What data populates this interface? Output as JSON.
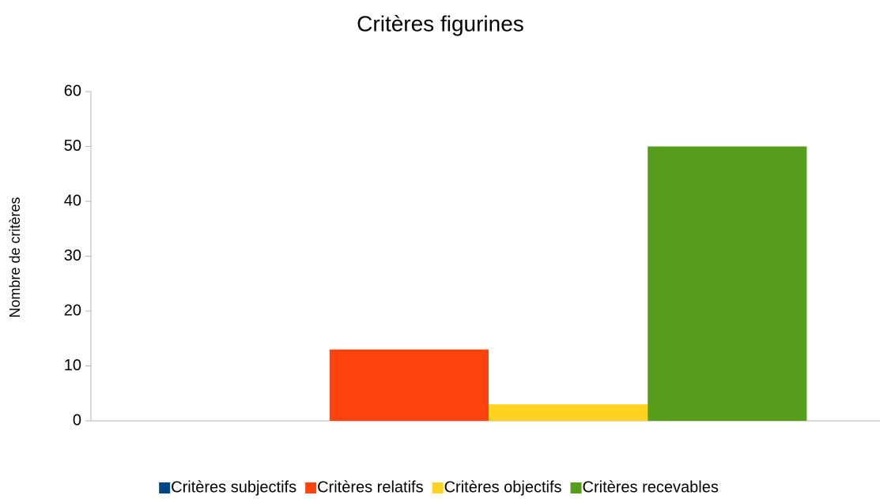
{
  "chart_data": {
    "type": "bar",
    "title": "Critères figurines",
    "y_label": "Nombre de critères",
    "categories": [
      null
    ],
    "series": [
      {
        "name": "Critères subjectifs",
        "color": "#004586",
        "values": [
          0
        ]
      },
      {
        "name": "Critères relatifs",
        "color": "#ff420e",
        "values": [
          13
        ]
      },
      {
        "name": "Critères objectifs",
        "color": "#ffd320",
        "values": [
          3
        ]
      },
      {
        "name": "Critères recevables",
        "color": "#579d1c",
        "values": [
          50
        ]
      }
    ],
    "ylim": [
      0,
      60
    ],
    "yticks": [
      0,
      10,
      20,
      30,
      40,
      50,
      60
    ],
    "grid": false,
    "legend": "bottom"
  }
}
